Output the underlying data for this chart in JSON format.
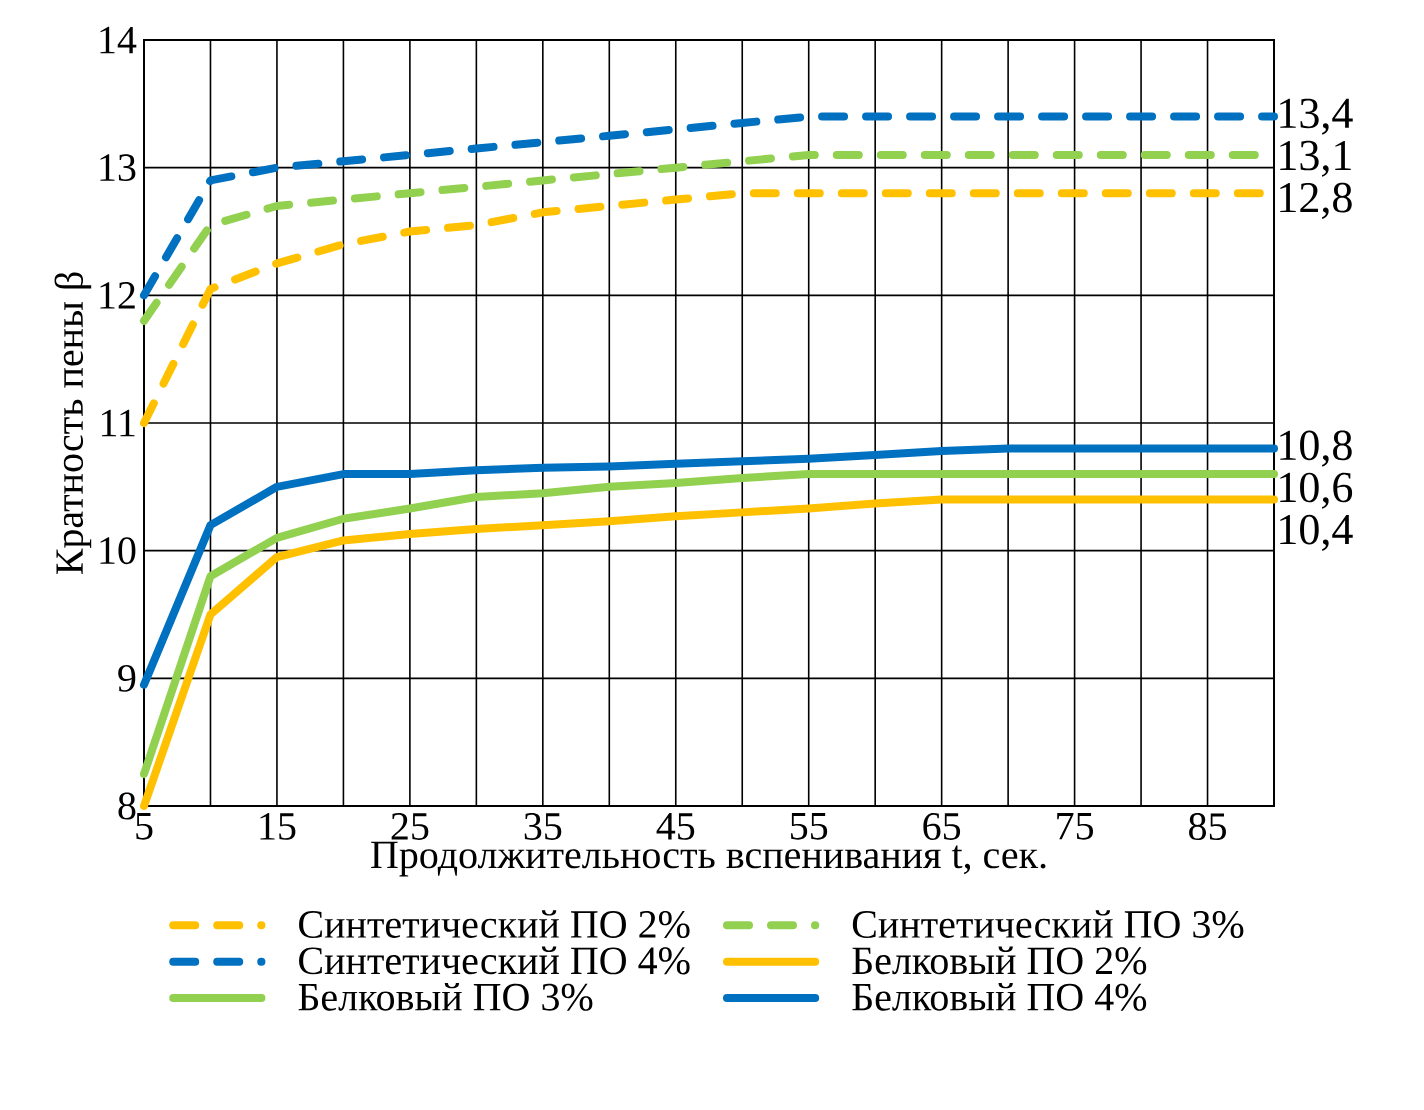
{
  "chart_data": {
    "type": "line",
    "xlabel": "Продолжительность вспенивания t, сек.",
    "ylabel": "Кратность пены β",
    "x": [
      5,
      10,
      15,
      20,
      25,
      30,
      35,
      40,
      45,
      50,
      55,
      60,
      65,
      70,
      75,
      80,
      85,
      90
    ],
    "xlim": [
      5,
      90
    ],
    "ylim": [
      8,
      14
    ],
    "xticks": [
      5,
      {
        "value": 10,
        "label": null
      },
      15,
      {
        "value": 20,
        "label": null
      },
      25,
      {
        "value": 30,
        "label": null
      },
      35,
      {
        "value": 40,
        "label": null
      },
      45,
      {
        "value": 50,
        "label": null
      },
      55,
      {
        "value": 60,
        "label": null
      },
      65,
      {
        "value": 70,
        "label": null
      },
      75,
      {
        "value": 80,
        "label": null
      },
      85,
      {
        "value": 90,
        "label": null
      }
    ],
    "yticks": [
      8,
      9,
      10,
      11,
      12,
      13,
      14
    ],
    "grid": true,
    "legend": "bottom",
    "marker": "none",
    "series": [
      {
        "name": "Синтетический ПО 2%",
        "color": "#ffc000",
        "line_style": "dashed",
        "values": [
          11.0,
          12.05,
          12.25,
          12.4,
          12.5,
          12.55,
          12.65,
          12.7,
          12.75,
          12.8,
          12.8,
          12.8,
          12.8,
          12.8,
          12.8,
          12.8,
          12.8,
          12.8
        ],
        "value_labels": [
          null,
          null,
          null,
          null,
          null,
          null,
          null,
          null,
          null,
          null,
          null,
          null,
          null,
          null,
          null,
          null,
          null,
          "12,8"
        ]
      },
      {
        "name": "Синтетический ПО 3%",
        "color": "#92d050",
        "line_style": "dashed",
        "values": [
          11.8,
          12.55,
          12.7,
          12.75,
          12.8,
          12.85,
          12.9,
          12.95,
          13.0,
          13.05,
          13.1,
          13.1,
          13.1,
          13.1,
          13.1,
          13.1,
          13.1,
          13.1
        ],
        "value_labels": [
          null,
          null,
          null,
          null,
          null,
          null,
          null,
          null,
          null,
          null,
          null,
          null,
          null,
          null,
          null,
          null,
          null,
          "13,1"
        ]
      },
      {
        "name": "Синтетический ПО 4%",
        "color": "#0070c0",
        "line_style": "dashed",
        "values": [
          12.0,
          12.9,
          13.0,
          13.05,
          13.1,
          13.15,
          13.2,
          13.25,
          13.3,
          13.35,
          13.4,
          13.4,
          13.4,
          13.4,
          13.4,
          13.4,
          13.4,
          13.4
        ],
        "value_labels": [
          null,
          null,
          null,
          null,
          null,
          null,
          null,
          null,
          null,
          null,
          null,
          null,
          null,
          null,
          null,
          null,
          null,
          "13,4"
        ]
      },
      {
        "name": "Белковый ПО 2%",
        "color": "#ffc000",
        "line_style": "solid",
        "values": [
          8.0,
          9.5,
          9.95,
          10.08,
          10.13,
          10.17,
          10.2,
          10.23,
          10.27,
          10.3,
          10.33,
          10.37,
          10.4,
          10.4,
          10.4,
          10.4,
          10.4,
          10.4
        ],
        "value_labels": [
          null,
          null,
          null,
          null,
          null,
          null,
          null,
          null,
          null,
          null,
          null,
          null,
          null,
          null,
          null,
          null,
          null,
          "10,4"
        ]
      },
      {
        "name": "Белковый ПО 3%",
        "color": "#92d050",
        "line_style": "solid",
        "values": [
          8.25,
          9.8,
          10.1,
          10.25,
          10.33,
          10.42,
          10.45,
          10.5,
          10.53,
          10.57,
          10.6,
          10.6,
          10.6,
          10.6,
          10.6,
          10.6,
          10.6,
          10.6
        ],
        "value_labels": [
          null,
          null,
          null,
          null,
          null,
          null,
          null,
          null,
          null,
          null,
          null,
          null,
          null,
          null,
          null,
          null,
          null,
          "10,6"
        ]
      },
      {
        "name": "Белковый ПО 4%",
        "color": "#0070c0",
        "line_style": "solid",
        "values": [
          8.95,
          10.2,
          10.5,
          10.6,
          10.6,
          10.63,
          10.65,
          10.66,
          10.68,
          10.7,
          10.72,
          10.75,
          10.78,
          10.8,
          10.8,
          10.8,
          10.8,
          10.8
        ],
        "value_labels": [
          null,
          null,
          null,
          null,
          null,
          null,
          null,
          null,
          null,
          null,
          null,
          null,
          null,
          null,
          null,
          null,
          null,
          "10,8"
        ]
      }
    ]
  }
}
